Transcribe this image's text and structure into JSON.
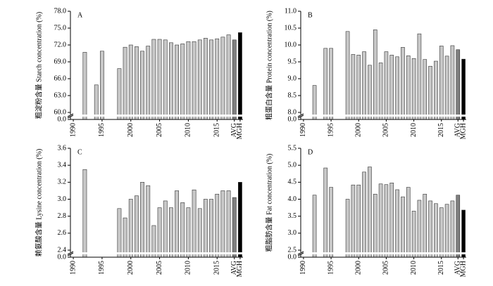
{
  "chart_data": [
    {
      "type": "bar",
      "panel": "A",
      "ylabel": "粗淀粉含量 Starch concentration (%)",
      "categories": [
        "1990",
        null,
        null,
        null,
        null,
        "1995",
        null,
        null,
        null,
        null,
        "2000",
        null,
        null,
        null,
        null,
        "2005",
        null,
        null,
        null,
        null,
        "2010",
        null,
        null,
        null,
        null,
        "2015",
        null,
        null,
        "AVG",
        "MGH"
      ],
      "values": [
        null,
        null,
        70.7,
        null,
        64.9,
        70.9,
        null,
        null,
        67.8,
        71.6,
        72.0,
        71.7,
        70.9,
        71.8,
        73.0,
        73.0,
        72.9,
        72.4,
        72.0,
        72.2,
        72.6,
        72.6,
        72.9,
        73.2,
        72.9,
        73.1,
        73.4,
        73.8,
        72.9,
        74.2
      ],
      "ylim": [
        60,
        78
      ],
      "yticks": [
        {
          "value": 60,
          "label": "60.0"
        },
        {
          "value": 63,
          "label": "63.0"
        },
        {
          "value": 66,
          "label": "66.0"
        },
        {
          "value": 69,
          "label": "69.0"
        },
        {
          "value": 72,
          "label": "72.0"
        },
        {
          "value": 75,
          "label": "75.0"
        },
        {
          "value": 78,
          "label": "78.0"
        }
      ],
      "zero_tick": {
        "value": 0,
        "label": "0.0"
      },
      "color": "#c8c8c8",
      "avg_color": "#808080",
      "mgh_color": "#000000"
    },
    {
      "type": "bar",
      "panel": "B",
      "ylabel": "粗蛋白含量 Protein concentration (%)",
      "categories": [
        "1990",
        null,
        null,
        null,
        null,
        "1995",
        null,
        null,
        null,
        null,
        "2000",
        null,
        null,
        null,
        null,
        "2005",
        null,
        null,
        null,
        null,
        "2010",
        null,
        null,
        null,
        null,
        "2015",
        null,
        null,
        "AVG",
        "MGH"
      ],
      "values": [
        null,
        null,
        8.8,
        null,
        9.9,
        9.9,
        null,
        null,
        10.4,
        9.72,
        9.7,
        9.8,
        9.4,
        10.45,
        9.47,
        9.8,
        9.7,
        9.65,
        9.93,
        9.68,
        9.6,
        10.33,
        9.57,
        9.37,
        9.52,
        9.97,
        9.67,
        9.98,
        9.86,
        9.58
      ],
      "ylim": [
        8,
        11
      ],
      "yticks": [
        {
          "value": 8,
          "label": "8.0"
        },
        8.5,
        {
          "value": 9,
          "label": "9.0"
        },
        9.5,
        {
          "value": 10,
          "label": "10.0"
        },
        10.5,
        {
          "value": 11,
          "label": "11.0"
        }
      ],
      "zero_tick": {
        "value": 0,
        "label": "0.0"
      },
      "color": "#c8c8c8",
      "avg_color": "#808080",
      "mgh_color": "#000000"
    },
    {
      "type": "bar",
      "panel": "C",
      "ylabel": "赖氨酸含量 Lysine concentration (%)",
      "categories": [
        "1990",
        null,
        null,
        null,
        null,
        "1995",
        null,
        null,
        null,
        null,
        "2000",
        null,
        null,
        null,
        null,
        "2005",
        null,
        null,
        null,
        null,
        "2010",
        null,
        null,
        null,
        null,
        "2015",
        null,
        null,
        "AVG",
        "MGH"
      ],
      "values": [
        null,
        null,
        3.35,
        null,
        null,
        null,
        null,
        null,
        2.89,
        2.78,
        3.0,
        3.04,
        3.2,
        3.16,
        2.69,
        2.9,
        2.98,
        2.9,
        3.1,
        2.96,
        2.9,
        3.11,
        2.89,
        3.0,
        3.0,
        3.06,
        3.1,
        3.1,
        3.02,
        3.2
      ],
      "ylim": [
        2.4,
        3.6
      ],
      "yticks": [
        2.4,
        2.6,
        2.8,
        {
          "value": 3,
          "label": "3.0"
        },
        3.2,
        3.4,
        3.6
      ],
      "zero_tick": {
        "value": 0,
        "label": "0.0"
      },
      "color": "#c8c8c8",
      "avg_color": "#808080",
      "mgh_color": "#000000"
    },
    {
      "type": "bar",
      "panel": "D",
      "ylabel": "粗脂肪含量 Fat concentration (%)",
      "categories": [
        "1990",
        null,
        null,
        null,
        null,
        "1995",
        null,
        null,
        null,
        null,
        "2000",
        null,
        null,
        null,
        null,
        "2005",
        null,
        null,
        null,
        null,
        "2010",
        null,
        null,
        null,
        null,
        "2015",
        null,
        null,
        "AVG",
        "MGH"
      ],
      "values": [
        null,
        null,
        4.12,
        null,
        4.92,
        4.35,
        null,
        null,
        4.0,
        4.42,
        4.42,
        4.8,
        4.95,
        4.15,
        4.45,
        4.43,
        4.48,
        4.28,
        4.07,
        4.35,
        3.65,
        3.97,
        4.15,
        3.95,
        3.87,
        3.75,
        3.85,
        3.95,
        4.12,
        3.68
      ],
      "ylim": [
        2.5,
        5.5
      ],
      "yticks": [
        2.5,
        {
          "value": 3,
          "label": "3.0"
        },
        3.5,
        {
          "value": 4,
          "label": "4.0"
        },
        4.5,
        {
          "value": 5,
          "label": "5.0"
        },
        5.5
      ],
      "zero_tick": {
        "value": 0,
        "label": "0.0"
      },
      "color": "#c8c8c8",
      "avg_color": "#808080",
      "mgh_color": "#000000"
    }
  ]
}
